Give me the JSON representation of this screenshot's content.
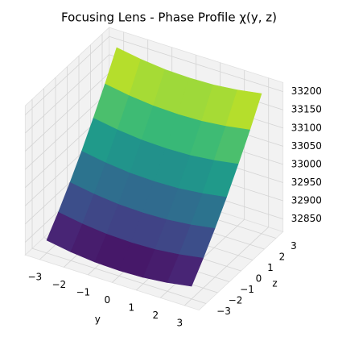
{
  "chart_data": {
    "type": "surface",
    "title": "Focusing Lens - Phase Profile χ(y, z)",
    "xlabel": "y",
    "ylabel": "z",
    "x": [
      -3,
      -2,
      -1,
      0,
      1,
      2,
      3
    ],
    "y": [
      -3,
      -2,
      -1,
      0,
      1,
      2,
      3
    ],
    "values": [
      [
        32850,
        32839,
        32832,
        32830,
        32832,
        32839,
        32850
      ],
      [
        32897,
        32886,
        32879,
        32877,
        32879,
        32886,
        32897
      ],
      [
        32949,
        32938,
        32931,
        32929,
        32931,
        32938,
        32949
      ],
      [
        33005,
        32994,
        32987,
        32985,
        32987,
        32994,
        33005
      ],
      [
        33066,
        33055,
        33048,
        33046,
        33048,
        33055,
        33066
      ],
      [
        33130,
        33119,
        33112,
        33110,
        33112,
        33119,
        33130
      ],
      [
        33200,
        33189,
        33182,
        33180,
        33182,
        33189,
        33200
      ]
    ],
    "xlim": [
      -3.6,
      3.6
    ],
    "ylim": [
      -3.6,
      3.6
    ],
    "zlim": [
      32815,
      33225
    ],
    "xticks": [
      {
        "value": -3,
        "label": "−3"
      },
      {
        "value": -2,
        "label": "−2"
      },
      {
        "value": -1,
        "label": "−1"
      },
      0,
      1,
      2,
      3
    ],
    "yticks": [
      {
        "value": -3,
        "label": "−3"
      },
      {
        "value": -2,
        "label": "−2"
      },
      {
        "value": -1,
        "label": "−1"
      },
      0,
      1,
      2,
      3
    ],
    "zticks": [
      32850,
      32900,
      32950,
      33000,
      33050,
      33100,
      33150,
      33200
    ],
    "colormap": "viridis",
    "grid": true
  }
}
